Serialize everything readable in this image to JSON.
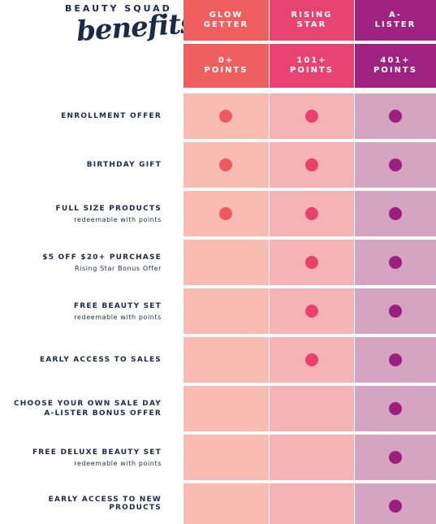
{
  "header": {
    "brand": "BEAUTY SQUAD",
    "title": "benefits"
  },
  "tiers": [
    {
      "name": "GLOW GETTER",
      "points": "0+ POINTS"
    },
    {
      "name": "RISING STAR",
      "points": "101+ POINTS"
    },
    {
      "name": "A-LISTER",
      "points": "401+ POINTS"
    }
  ],
  "rows": [
    {
      "title": "ENROLLMENT OFFER"
    },
    {
      "title": "BIRTHDAY GIFT"
    },
    {
      "title": "FULL SIZE PRODUCTS",
      "note": "redeemable with points"
    },
    {
      "title": "$5 OFF $20+ PURCHASE",
      "note": "Rising Star Bonus Offer"
    },
    {
      "title": "FREE BEAUTY SET",
      "note": "redeemable with points"
    },
    {
      "title": "EARLY ACCESS TO SALES"
    },
    {
      "title": "CHOOSE YOUR OWN SALE DAY",
      "note": "A-LISTER BONUS OFFER"
    },
    {
      "title": "FREE DELUXE BEAUTY SET",
      "note": "redeemable with points"
    },
    {
      "title": "EARLY ACCESS TO NEW PRODUCTS"
    }
  ]
}
